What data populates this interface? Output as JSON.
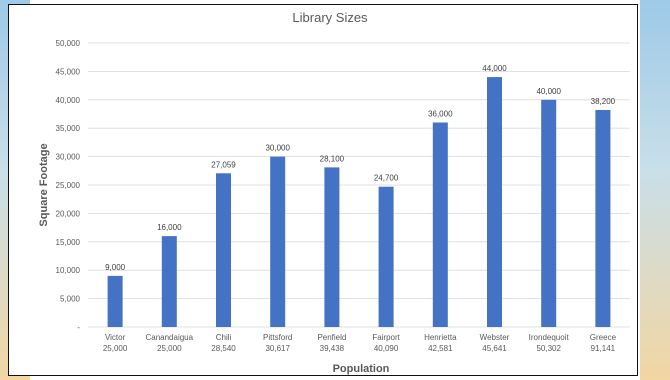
{
  "chart_data": {
    "type": "bar",
    "title": "Library Sizes",
    "xlabel": "Population",
    "ylabel": "Square Footage",
    "ylim": [
      0,
      50000
    ],
    "yticks": [
      "-",
      "5,000",
      "10,000",
      "15,000",
      "20,000",
      "25,000",
      "30,000",
      "35,000",
      "40,000",
      "45,000",
      "50,000"
    ],
    "grid": true,
    "bar_color": "#4472c4",
    "categories": [
      {
        "name": "Victor",
        "population": "25,000"
      },
      {
        "name": "Canandaigua",
        "population": "25,000"
      },
      {
        "name": "Chili",
        "population": "28,540"
      },
      {
        "name": "Pittsford",
        "population": "30,617"
      },
      {
        "name": "Penfield",
        "population": "39,438"
      },
      {
        "name": "Fairport",
        "population": "40,090"
      },
      {
        "name": "Henrietta",
        "population": "42,581"
      },
      {
        "name": "Webster",
        "population": "45,641"
      },
      {
        "name": "Irondequoit",
        "population": "50,302"
      },
      {
        "name": "Greece",
        "population": "91,141"
      }
    ],
    "values": [
      9000,
      16000,
      27059,
      30000,
      28100,
      24700,
      36000,
      44000,
      40000,
      38200
    ],
    "value_labels": [
      "9,000",
      "16,000",
      "27,059",
      "30,000",
      "28,100",
      "24,700",
      "36,000",
      "44,000",
      "40,000",
      "38,200"
    ]
  }
}
